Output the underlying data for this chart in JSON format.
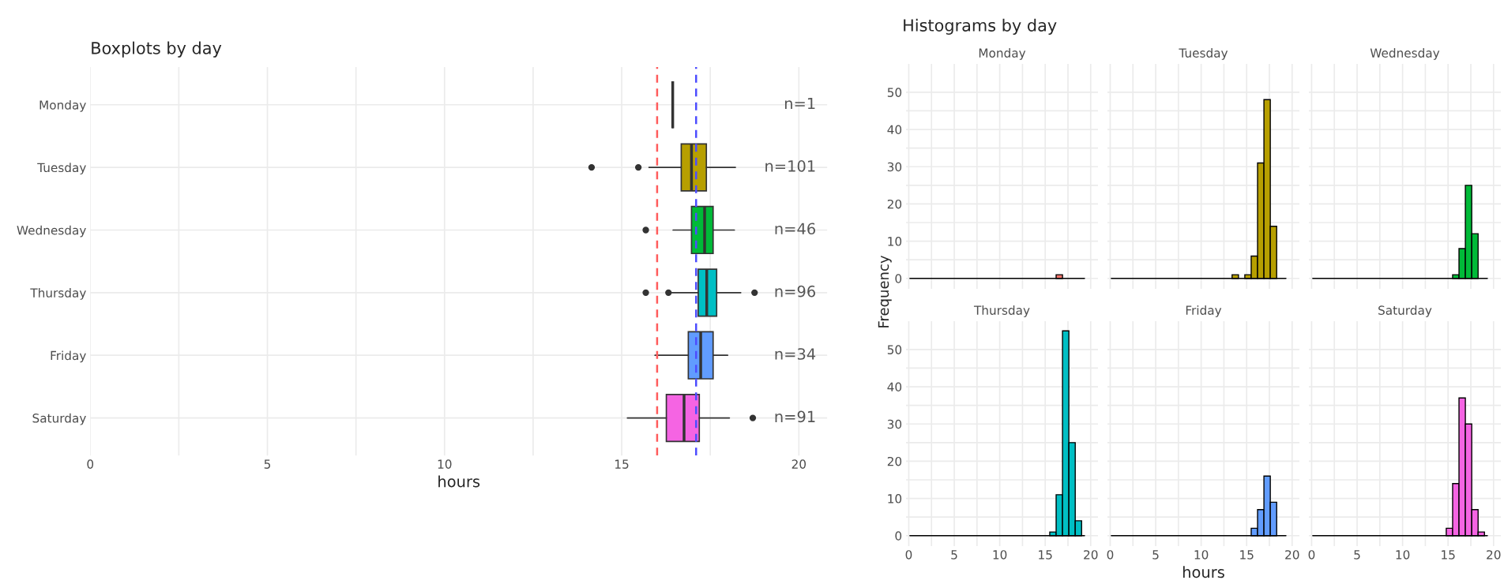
{
  "chart_data": [
    {
      "type": "box",
      "title": "Boxplots by day",
      "xlabel": "hours",
      "orientation": "horizontal",
      "categories": [
        "Monday",
        "Tuesday",
        "Wednesday",
        "Thursday",
        "Friday",
        "Saturday"
      ],
      "colors": [
        "#333333",
        "#b79f00",
        "#00ba38",
        "#00bfc4",
        "#619cff",
        "#f564e3"
      ],
      "boxes": [
        {
          "low": 16.44,
          "q1": 16.44,
          "median": 16.44,
          "q3": 16.44,
          "high": 16.44
        },
        {
          "low": 15.77,
          "q1": 16.68,
          "median": 16.97,
          "q3": 17.39,
          "high": 18.21,
          "outliers": [
            14.15,
            15.47
          ]
        },
        {
          "low": 16.45,
          "q1": 16.97,
          "median": 17.34,
          "q3": 17.58,
          "high": 18.18,
          "outliers": [
            15.68
          ]
        },
        {
          "low": 16.35,
          "q1": 17.16,
          "median": 17.4,
          "q3": 17.68,
          "high": 18.36,
          "outliers": [
            15.68,
            16.32,
            18.75
          ]
        },
        {
          "low": 15.94,
          "q1": 16.88,
          "median": 17.23,
          "q3": 17.58,
          "high": 17.99
        },
        {
          "low": 15.16,
          "q1": 16.26,
          "median": 16.76,
          "q3": 17.19,
          "high": 18.04,
          "outliers": [
            18.7
          ]
        }
      ],
      "xlim": [
        0,
        20.8
      ],
      "xticks": [
        0,
        5,
        10,
        15,
        20
      ],
      "grid": true,
      "ref_lines": [
        {
          "axis": "x",
          "value": 16,
          "color": "#ff5c5c",
          "line_style": "dashed"
        },
        {
          "axis": "x",
          "value": 17.1,
          "color": "#4d4dff",
          "line_style": "dashed"
        }
      ],
      "annotations": [
        "n=1",
        "n=101",
        "n=46",
        "n=96",
        "n=34",
        "n=91"
      ]
    },
    {
      "type": "histogram",
      "title": "Monday",
      "annotations": [
        "Histograms by day"
      ],
      "ylabel": "Frequency",
      "bins": [
        0.1,
        0.8,
        1.5,
        2.2,
        2.9,
        3.6,
        4.3,
        5.0,
        5.7,
        6.4,
        7.1,
        7.8,
        8.5,
        9.2,
        9.9,
        10.6,
        11.3,
        12.0,
        12.7,
        13.4,
        14.1,
        14.8,
        15.5,
        16.2,
        16.9,
        17.6,
        18.3,
        19.0,
        19.7
      ],
      "values": [
        0,
        0,
        0,
        0,
        0,
        0,
        0,
        0,
        0,
        0,
        0,
        0,
        0,
        0,
        0,
        0,
        0,
        0,
        0,
        0,
        0,
        0,
        0,
        1,
        0,
        0,
        0,
        0
      ],
      "color": "#f8766d",
      "xlim": [
        -0.3,
        20.8
      ],
      "ylim": [
        -2.8,
        57.6
      ],
      "xticks": [
        0,
        5,
        10,
        15,
        20
      ],
      "yticks": [
        0,
        10,
        20,
        30,
        40,
        50
      ],
      "grid": true,
      "tick_labels": "y"
    },
    {
      "type": "histogram",
      "title": "Tuesday",
      "bins": [
        0.1,
        0.8,
        1.5,
        2.2,
        2.9,
        3.6,
        4.3,
        5.0,
        5.7,
        6.4,
        7.1,
        7.8,
        8.5,
        9.2,
        9.9,
        10.6,
        11.3,
        12.0,
        12.7,
        13.4,
        14.1,
        14.8,
        15.5,
        16.2,
        16.9,
        17.6,
        18.3,
        19.0,
        19.7
      ],
      "values": [
        0,
        0,
        0,
        0,
        0,
        0,
        0,
        0,
        0,
        0,
        0,
        0,
        0,
        0,
        0,
        0,
        0,
        0,
        0,
        1,
        0,
        1,
        6,
        31,
        48,
        14,
        0,
        0
      ],
      "color": "#b79f00",
      "xlim": [
        -0.3,
        20.8
      ],
      "ylim": [
        -2.8,
        57.6
      ],
      "xticks": [
        0,
        5,
        10,
        15,
        20
      ],
      "yticks": [
        0,
        10,
        20,
        30,
        40,
        50
      ],
      "grid": true,
      "tick_labels": false
    },
    {
      "type": "histogram",
      "title": "Wednesday",
      "bins": [
        0.1,
        0.8,
        1.5,
        2.2,
        2.9,
        3.6,
        4.3,
        5.0,
        5.7,
        6.4,
        7.1,
        7.8,
        8.5,
        9.2,
        9.9,
        10.6,
        11.3,
        12.0,
        12.7,
        13.4,
        14.1,
        14.8,
        15.5,
        16.2,
        16.9,
        17.6,
        18.3,
        19.0,
        19.7
      ],
      "values": [
        0,
        0,
        0,
        0,
        0,
        0,
        0,
        0,
        0,
        0,
        0,
        0,
        0,
        0,
        0,
        0,
        0,
        0,
        0,
        0,
        0,
        0,
        1,
        8,
        25,
        12,
        0,
        0
      ],
      "color": "#00ba38",
      "xlim": [
        -0.3,
        20.8
      ],
      "ylim": [
        -2.8,
        57.6
      ],
      "xticks": [
        0,
        5,
        10,
        15,
        20
      ],
      "yticks": [
        0,
        10,
        20,
        30,
        40,
        50
      ],
      "grid": true,
      "tick_labels": false
    },
    {
      "type": "histogram",
      "title": "Thursday",
      "bins": [
        0.1,
        0.8,
        1.5,
        2.2,
        2.9,
        3.6,
        4.3,
        5.0,
        5.7,
        6.4,
        7.1,
        7.8,
        8.5,
        9.2,
        9.9,
        10.6,
        11.3,
        12.0,
        12.7,
        13.4,
        14.1,
        14.8,
        15.5,
        16.2,
        16.9,
        17.6,
        18.3,
        19.0,
        19.7
      ],
      "values": [
        0,
        0,
        0,
        0,
        0,
        0,
        0,
        0,
        0,
        0,
        0,
        0,
        0,
        0,
        0,
        0,
        0,
        0,
        0,
        0,
        0,
        0,
        1,
        11,
        55,
        25,
        4,
        0
      ],
      "color": "#00bfc4",
      "xlim": [
        -0.3,
        20.8
      ],
      "ylim": [
        -2.8,
        57.6
      ],
      "xticks": [
        0,
        5,
        10,
        15,
        20
      ],
      "yticks": [
        0,
        10,
        20,
        30,
        40,
        50
      ],
      "grid": true
    },
    {
      "type": "histogram",
      "title": "Friday",
      "xlabel": "hours",
      "bins": [
        0.1,
        0.8,
        1.5,
        2.2,
        2.9,
        3.6,
        4.3,
        5.0,
        5.7,
        6.4,
        7.1,
        7.8,
        8.5,
        9.2,
        9.9,
        10.6,
        11.3,
        12.0,
        12.7,
        13.4,
        14.1,
        14.8,
        15.5,
        16.2,
        16.9,
        17.6,
        18.3,
        19.0,
        19.7
      ],
      "values": [
        0,
        0,
        0,
        0,
        0,
        0,
        0,
        0,
        0,
        0,
        0,
        0,
        0,
        0,
        0,
        0,
        0,
        0,
        0,
        0,
        0,
        0,
        2,
        7,
        16,
        9,
        0,
        0
      ],
      "color": "#619cff",
      "xlim": [
        -0.3,
        20.8
      ],
      "ylim": [
        -2.8,
        57.6
      ],
      "xticks": [
        0,
        5,
        10,
        15,
        20
      ],
      "yticks": [
        0,
        10,
        20,
        30,
        40,
        50
      ],
      "grid": true,
      "tick_labels": "x"
    },
    {
      "type": "histogram",
      "title": "Saturday",
      "bins": [
        0.1,
        0.8,
        1.5,
        2.2,
        2.9,
        3.6,
        4.3,
        5.0,
        5.7,
        6.4,
        7.1,
        7.8,
        8.5,
        9.2,
        9.9,
        10.6,
        11.3,
        12.0,
        12.7,
        13.4,
        14.1,
        14.8,
        15.5,
        16.2,
        16.9,
        17.6,
        18.3,
        19.0,
        19.7
      ],
      "values": [
        0,
        0,
        0,
        0,
        0,
        0,
        0,
        0,
        0,
        0,
        0,
        0,
        0,
        0,
        0,
        0,
        0,
        0,
        0,
        0,
        0,
        2,
        14,
        37,
        30,
        7,
        1,
        0
      ],
      "color": "#f564e3",
      "xlim": [
        -0.3,
        20.8
      ],
      "ylim": [
        -2.8,
        57.6
      ],
      "xticks": [
        0,
        5,
        10,
        15,
        20
      ],
      "yticks": [
        0,
        10,
        20,
        30,
        40,
        50
      ],
      "grid": true,
      "tick_labels": "x"
    }
  ]
}
